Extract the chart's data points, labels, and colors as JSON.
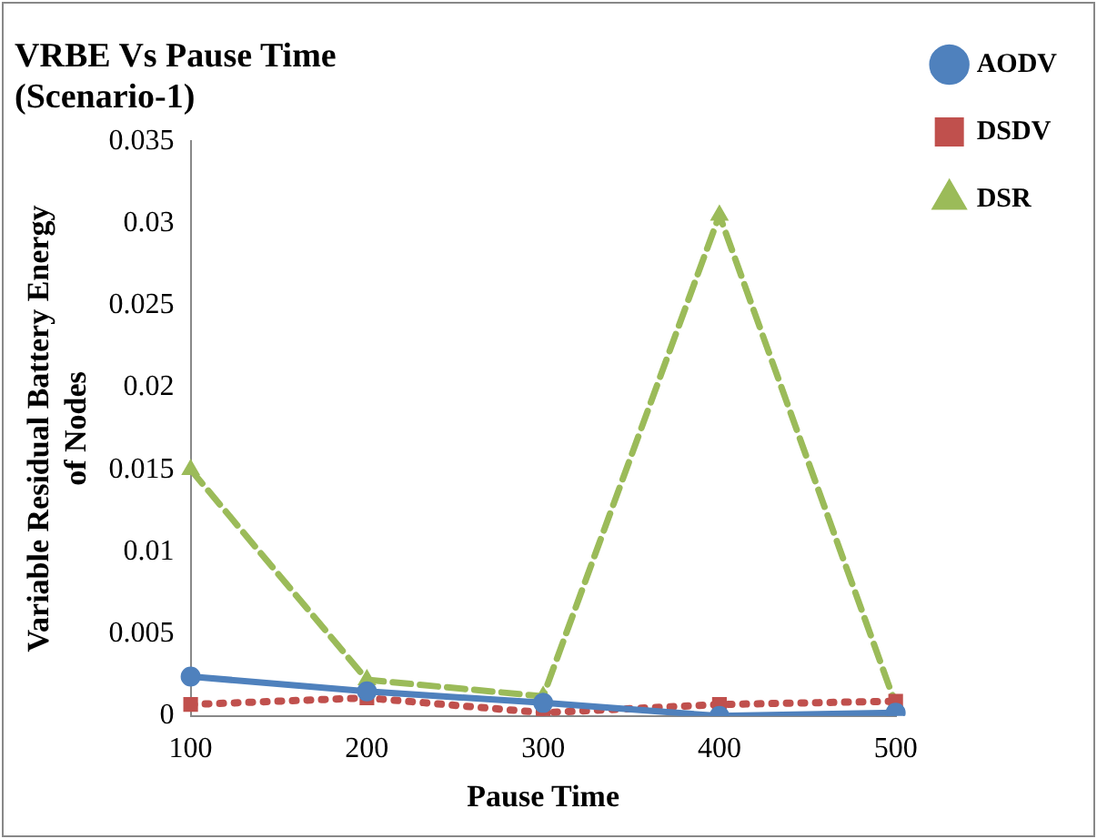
{
  "chart_data": {
    "type": "line",
    "title": "VRBE Vs Pause Time (Scenario-1)",
    "xlabel": "Pause Time",
    "ylabel": "Variable Residual Battery Energy of Nodes",
    "categories": [
      "100",
      "200",
      "300",
      "400",
      "500"
    ],
    "series": [
      {
        "name": "AODV",
        "color": "#4f81bd",
        "marker": "circle",
        "line_style": "solid",
        "values": [
          0.0024,
          0.0015,
          0.0008,
          0,
          0.0002
        ]
      },
      {
        "name": "DSDV",
        "color": "#c0504d",
        "marker": "square",
        "line_style": "dotted",
        "values": [
          0.0007,
          0.0011,
          0.0002,
          0.0007,
          0.0009
        ]
      },
      {
        "name": "DSR",
        "color": "#9bbb59",
        "marker": "triangle",
        "line_style": "dashed",
        "values": [
          0.015,
          0.0022,
          0.0012,
          0.0305,
          0.0007
        ]
      }
    ],
    "ylim": [
      0,
      0.035
    ],
    "yticks": [
      0,
      0.005,
      0.01,
      0.015,
      0.02,
      0.025,
      0.03,
      0.035
    ],
    "grid": false,
    "legend": "top right"
  }
}
